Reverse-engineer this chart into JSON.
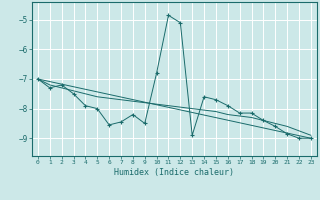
{
  "title": "",
  "xlabel": "Humidex (Indice chaleur)",
  "bg_color": "#cce8e8",
  "grid_color": "#ffffff",
  "line_color": "#1a6b6b",
  "xlim": [
    -0.5,
    23.5
  ],
  "ylim": [
    -9.6,
    -4.4
  ],
  "xticks": [
    0,
    1,
    2,
    3,
    4,
    5,
    6,
    7,
    8,
    9,
    10,
    11,
    12,
    13,
    14,
    15,
    16,
    17,
    18,
    19,
    20,
    21,
    22,
    23
  ],
  "yticks": [
    -9,
    -8,
    -7,
    -6,
    -5
  ],
  "series": [
    [
      0,
      -7.0
    ],
    [
      1,
      -7.3
    ],
    [
      2,
      -7.2
    ],
    [
      3,
      -7.5
    ],
    [
      4,
      -7.9
    ],
    [
      5,
      -8.0
    ],
    [
      6,
      -8.55
    ],
    [
      7,
      -8.45
    ],
    [
      8,
      -8.2
    ],
    [
      9,
      -8.5
    ],
    [
      10,
      -6.8
    ],
    [
      11,
      -4.85
    ],
    [
      12,
      -5.1
    ],
    [
      13,
      -8.9
    ],
    [
      14,
      -7.6
    ],
    [
      15,
      -7.7
    ],
    [
      16,
      -7.9
    ],
    [
      17,
      -8.15
    ],
    [
      18,
      -8.15
    ],
    [
      19,
      -8.4
    ],
    [
      20,
      -8.6
    ],
    [
      21,
      -8.85
    ],
    [
      22,
      -9.0
    ],
    [
      23,
      -9.0
    ]
  ],
  "trend_line": [
    [
      0,
      -7.0
    ],
    [
      23,
      -9.0
    ]
  ],
  "smooth_line": [
    [
      0,
      -7.0
    ],
    [
      1,
      -7.2
    ],
    [
      2,
      -7.3
    ],
    [
      3,
      -7.4
    ],
    [
      4,
      -7.5
    ],
    [
      5,
      -7.6
    ],
    [
      6,
      -7.65
    ],
    [
      7,
      -7.7
    ],
    [
      8,
      -7.75
    ],
    [
      9,
      -7.8
    ],
    [
      10,
      -7.85
    ],
    [
      11,
      -7.9
    ],
    [
      12,
      -7.95
    ],
    [
      13,
      -8.0
    ],
    [
      14,
      -8.05
    ],
    [
      15,
      -8.1
    ],
    [
      16,
      -8.2
    ],
    [
      17,
      -8.25
    ],
    [
      18,
      -8.3
    ],
    [
      19,
      -8.4
    ],
    [
      20,
      -8.5
    ],
    [
      21,
      -8.6
    ],
    [
      22,
      -8.75
    ],
    [
      23,
      -8.9
    ]
  ]
}
